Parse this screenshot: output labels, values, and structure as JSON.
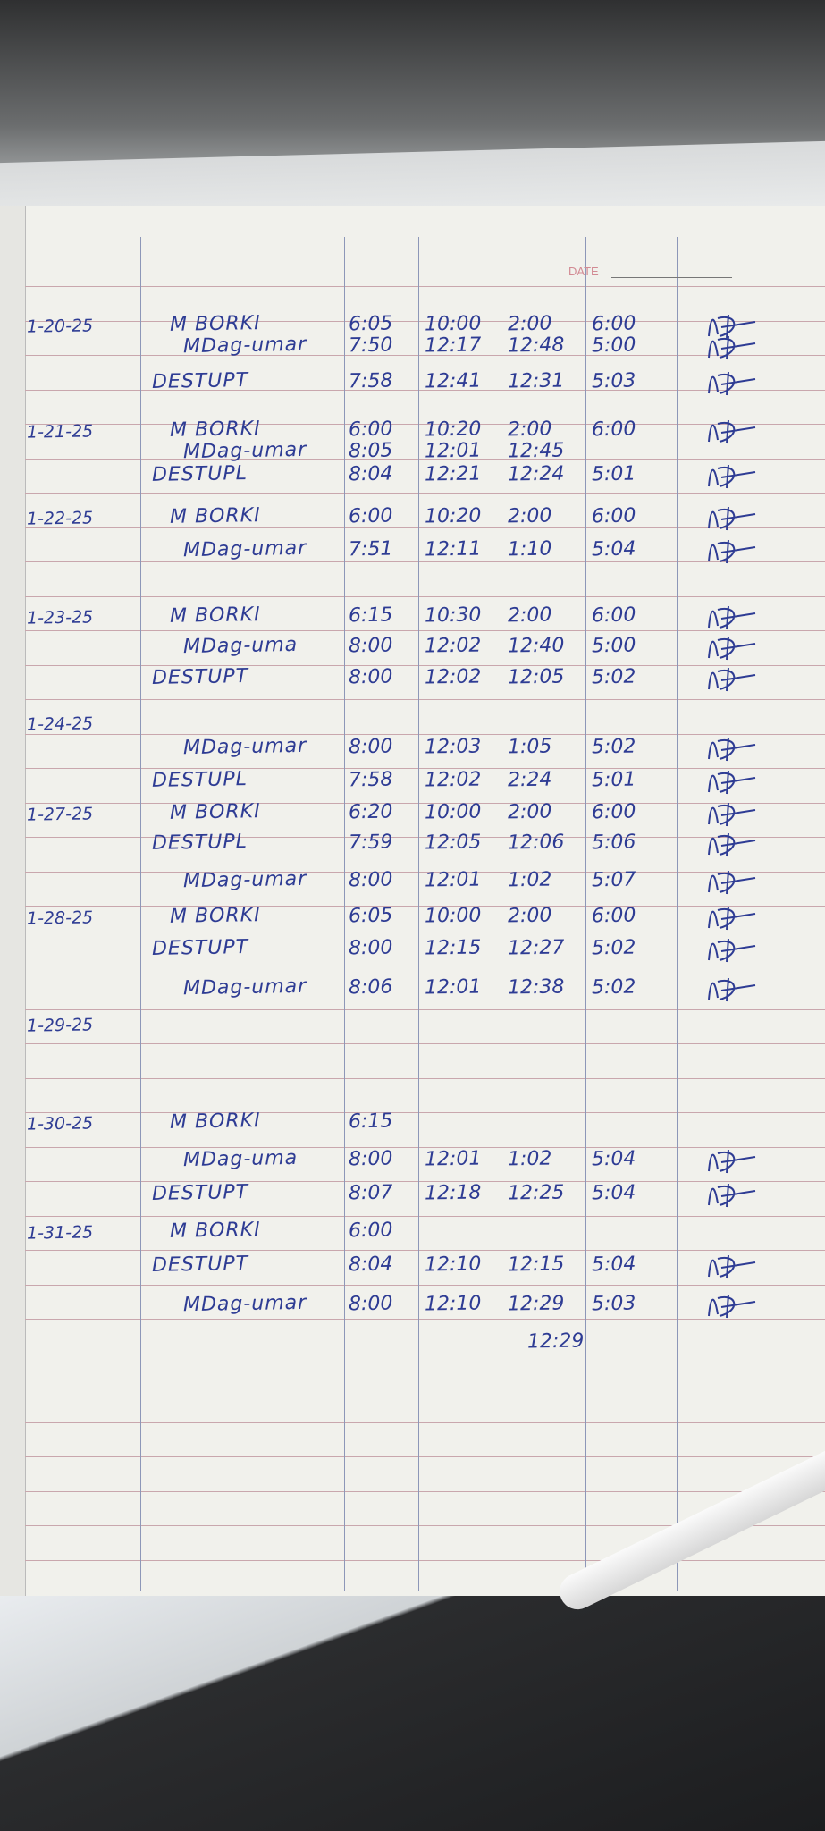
{
  "header": {
    "date_label": "DATE"
  },
  "entries": [
    {
      "date": "1-20-25",
      "name": "M BORKI",
      "times": [
        "6:05",
        "10:00",
        "2:00",
        "6:00"
      ]
    },
    {
      "date": "",
      "name": "MDag-umar",
      "times": [
        "7:50",
        "12:17",
        "12:48",
        "5:00"
      ]
    },
    {
      "date": "",
      "name": "DESTUPT",
      "times": [
        "7:58",
        "12:41",
        "12:31",
        "5:03"
      ]
    },
    {
      "date": "1-21-25",
      "name": "M BORKI",
      "times": [
        "6:00",
        "10:20",
        "2:00",
        "6:00"
      ]
    },
    {
      "date": "",
      "name": "MDag-umar",
      "times": [
        "8:05",
        "12:01",
        "12:45",
        ""
      ]
    },
    {
      "date": "",
      "name": "DESTUPL",
      "times": [
        "8:04",
        "12:21",
        "12:24",
        "5:01"
      ]
    },
    {
      "date": "1-22-25",
      "name": "M BORKI",
      "times": [
        "6:00",
        "10:20",
        "2:00",
        "6:00"
      ]
    },
    {
      "date": "",
      "name": "MDag-umar",
      "times": [
        "7:51",
        "12:11",
        "1:10",
        "5:04"
      ]
    },
    {
      "date": "1-23-25",
      "name": "M BORKI",
      "times": [
        "6:15",
        "10:30",
        "2:00",
        "6:00"
      ]
    },
    {
      "date": "",
      "name": "MDag-uma",
      "times": [
        "8:00",
        "12:02",
        "12:40",
        "5:00"
      ]
    },
    {
      "date": "",
      "name": "DESTUPT",
      "times": [
        "8:00",
        "12:02",
        "12:05",
        "5:02"
      ]
    },
    {
      "date": "1-24-25",
      "name": "",
      "times": [
        "",
        "",
        "",
        ""
      ]
    },
    {
      "date": "",
      "name": "MDag-umar",
      "times": [
        "8:00",
        "12:03",
        "1:05",
        "5:02"
      ]
    },
    {
      "date": "",
      "name": "DESTUPL",
      "times": [
        "7:58",
        "12:02",
        "2:24",
        "5:01"
      ]
    },
    {
      "date": "1-27-25",
      "name": "M BORKI",
      "times": [
        "6:20",
        "10:00",
        "2:00",
        "6:00"
      ]
    },
    {
      "date": "",
      "name": "DESTUPL",
      "times": [
        "7:59",
        "12:05",
        "12:06",
        "5:06"
      ]
    },
    {
      "date": "",
      "name": "MDag-umar",
      "times": [
        "8:00",
        "12:01",
        "1:02",
        "5:07"
      ]
    },
    {
      "date": "1-28-25",
      "name": "M BORKI",
      "times": [
        "6:05",
        "10:00",
        "2:00",
        "6:00"
      ]
    },
    {
      "date": "",
      "name": "DESTUPT",
      "times": [
        "8:00",
        "12:15",
        "12:27",
        "5:02"
      ]
    },
    {
      "date": "",
      "name": "MDag-umar",
      "times": [
        "8:06",
        "12:01",
        "12:38",
        "5:02"
      ]
    },
    {
      "date": "1-29-25",
      "name": "",
      "times": [
        "",
        "",
        "",
        ""
      ]
    },
    {
      "date": "1-30-25",
      "name": "M BORKI",
      "times": [
        "6:15",
        "",
        "",
        ""
      ]
    },
    {
      "date": "",
      "name": "MDag-uma",
      "times": [
        "8:00",
        "12:01",
        "1:02",
        "5:04"
      ]
    },
    {
      "date": "",
      "name": "DESTUPT",
      "times": [
        "8:07",
        "12:18",
        "12:25",
        "5:04"
      ]
    },
    {
      "date": "1-31-25",
      "name": "M BORKI",
      "times": [
        "6:00",
        "",
        "",
        ""
      ]
    },
    {
      "date": "",
      "name": "DESTUPT",
      "times": [
        "8:04",
        "12:10",
        "12:15",
        "5:04"
      ]
    },
    {
      "date": "",
      "name": "MDag-umar",
      "times": [
        "8:00",
        "12:10",
        "12:29",
        "5:03"
      ]
    }
  ],
  "signatures": [
    1,
    1,
    1,
    1,
    0,
    1,
    1,
    1,
    1,
    1,
    1,
    0,
    1,
    1,
    1,
    1,
    1,
    1,
    1,
    1,
    0,
    0,
    1,
    1,
    0,
    1,
    1
  ],
  "colors": {
    "ink": "#2e3c94",
    "paper": "#f1f1ec",
    "rule": "#c9a7ad",
    "date_label": "#d28a93"
  }
}
